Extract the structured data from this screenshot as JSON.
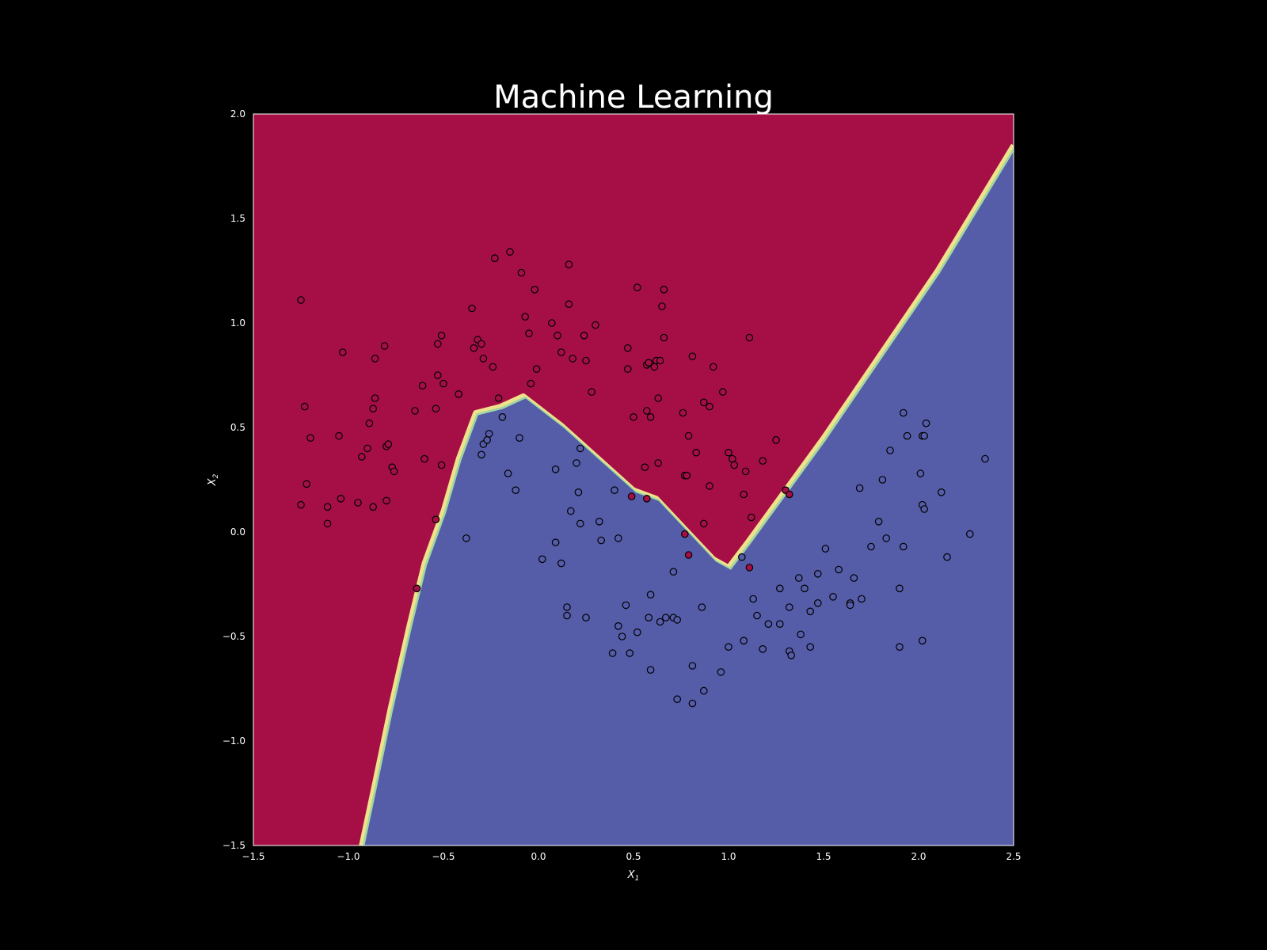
{
  "chart_data": {
    "type": "scatter",
    "title": "Machine Learning",
    "xlabel": "X",
    "xlabel_sub": "1",
    "ylabel": "X",
    "ylabel_sub": "2",
    "xlim": [
      -1.5,
      2.5
    ],
    "ylim": [
      -1.5,
      2.0
    ],
    "x_ticks": [
      -1.5,
      -1.0,
      -0.5,
      0.0,
      0.5,
      1.0,
      1.5,
      2.0,
      2.5
    ],
    "x_tick_labels": [
      "−1.5",
      "−1.0",
      "−0.5",
      "0.0",
      "0.5",
      "1.0",
      "1.5",
      "2.0",
      "2.5"
    ],
    "y_ticks": [
      -1.5,
      -1.0,
      -0.5,
      0.0,
      0.5,
      1.0,
      1.5,
      2.0
    ],
    "y_tick_labels": [
      "−1.5",
      "−1.0",
      "−0.5",
      "0.0",
      "0.5",
      "1.0",
      "1.5",
      "2.0"
    ],
    "grid": false,
    "colors": {
      "background": "#000000",
      "region_class0": "#a50f45",
      "region_class1": "#555ca8",
      "point_class0": "#a50f45",
      "point_class1": "#555ca8",
      "point_edge": "#000000",
      "boundary_bands": [
        "#f0e28a",
        "#9fd6a3",
        "#66c2a5"
      ]
    },
    "decision_boundary": [
      [
        -0.93,
        -1.5
      ],
      [
        -0.86,
        -1.2
      ],
      [
        -0.78,
        -0.85
      ],
      [
        -0.68,
        -0.45
      ],
      [
        -0.6,
        -0.15
      ],
      [
        -0.5,
        0.1
      ],
      [
        -0.42,
        0.35
      ],
      [
        -0.33,
        0.57
      ],
      [
        -0.2,
        0.6
      ],
      [
        -0.08,
        0.65
      ],
      [
        0.12,
        0.51
      ],
      [
        0.5,
        0.2
      ],
      [
        0.62,
        0.16
      ],
      [
        0.92,
        -0.13
      ],
      [
        1.0,
        -0.17
      ],
      [
        1.1,
        -0.05
      ],
      [
        1.3,
        0.2
      ],
      [
        1.5,
        0.45
      ],
      [
        1.8,
        0.85
      ],
      [
        2.1,
        1.25
      ],
      [
        2.5,
        1.85
      ]
    ],
    "series": [
      {
        "class": 0,
        "points": [
          [
            -1.25,
            1.11
          ],
          [
            -1.23,
            0.6
          ],
          [
            -1.2,
            0.45
          ],
          [
            -1.22,
            0.23
          ],
          [
            -1.25,
            0.13
          ],
          [
            -1.11,
            0.12
          ],
          [
            -1.11,
            0.04
          ],
          [
            -1.05,
            0.46
          ],
          [
            -1.03,
            0.86
          ],
          [
            -1.04,
            0.16
          ],
          [
            -0.95,
            0.14
          ],
          [
            -0.93,
            0.36
          ],
          [
            -0.9,
            0.4
          ],
          [
            -0.89,
            0.52
          ],
          [
            -0.87,
            0.59
          ],
          [
            -0.86,
            0.64
          ],
          [
            -0.86,
            0.83
          ],
          [
            -0.87,
            0.12
          ],
          [
            -0.81,
            0.89
          ],
          [
            -0.8,
            0.15
          ],
          [
            -0.8,
            0.41
          ],
          [
            -0.79,
            0.42
          ],
          [
            -0.77,
            0.31
          ],
          [
            -0.76,
            0.29
          ],
          [
            -0.65,
            0.58
          ],
          [
            -0.61,
            0.7
          ],
          [
            -0.6,
            0.35
          ],
          [
            -0.64,
            -0.27
          ],
          [
            -0.54,
            0.59
          ],
          [
            -0.54,
            0.06
          ],
          [
            -0.53,
            0.75
          ],
          [
            -0.53,
            0.9
          ],
          [
            -0.51,
            0.94
          ],
          [
            -0.5,
            0.71
          ],
          [
            -0.51,
            0.32
          ],
          [
            -0.42,
            0.66
          ],
          [
            -0.35,
            1.07
          ],
          [
            -0.34,
            0.88
          ],
          [
            -0.32,
            0.92
          ],
          [
            -0.3,
            0.9
          ],
          [
            -0.29,
            0.83
          ],
          [
            -0.23,
            1.31
          ],
          [
            -0.23,
            1.31
          ],
          [
            -0.24,
            0.79
          ],
          [
            -0.21,
            0.64
          ],
          [
            -0.15,
            1.34
          ],
          [
            -0.09,
            1.24
          ],
          [
            -0.07,
            1.03
          ],
          [
            -0.05,
            0.95
          ],
          [
            -0.04,
            0.71
          ],
          [
            -0.02,
            1.16
          ],
          [
            -0.01,
            0.78
          ],
          [
            0.07,
            1.0
          ],
          [
            0.1,
            0.94
          ],
          [
            0.12,
            0.86
          ],
          [
            0.16,
            1.28
          ],
          [
            0.16,
            1.09
          ],
          [
            0.18,
            0.83
          ],
          [
            0.24,
            0.94
          ],
          [
            0.25,
            0.82
          ],
          [
            0.28,
            0.67
          ],
          [
            0.3,
            0.99
          ],
          [
            0.47,
            0.88
          ],
          [
            0.47,
            0.78
          ],
          [
            0.5,
            0.55
          ],
          [
            0.52,
            1.17
          ],
          [
            0.57,
            0.8
          ],
          [
            0.57,
            0.58
          ],
          [
            0.58,
            0.81
          ],
          [
            0.59,
            0.55
          ],
          [
            0.61,
            0.79
          ],
          [
            0.62,
            0.82
          ],
          [
            0.63,
            0.64
          ],
          [
            0.64,
            0.82
          ],
          [
            0.65,
            1.08
          ],
          [
            0.66,
            1.16
          ],
          [
            0.66,
            0.93
          ],
          [
            0.56,
            0.31
          ],
          [
            0.63,
            0.33
          ],
          [
            0.76,
            0.57
          ],
          [
            0.77,
            0.27
          ],
          [
            0.78,
            0.27
          ],
          [
            0.79,
            0.46
          ],
          [
            0.81,
            0.84
          ],
          [
            0.83,
            0.38
          ],
          [
            0.87,
            0.62
          ],
          [
            0.87,
            0.04
          ],
          [
            0.9,
            0.6
          ],
          [
            0.9,
            0.22
          ],
          [
            0.92,
            0.79
          ],
          [
            0.97,
            0.67
          ],
          [
            1.0,
            0.38
          ],
          [
            1.02,
            0.35
          ],
          [
            1.03,
            0.32
          ],
          [
            1.08,
            0.18
          ],
          [
            1.09,
            0.29
          ],
          [
            1.11,
            0.93
          ],
          [
            1.12,
            0.07
          ],
          [
            1.18,
            0.34
          ],
          [
            1.25,
            0.44
          ],
          [
            1.3,
            0.2
          ],
          [
            0.49,
            0.17
          ],
          [
            0.57,
            0.16
          ],
          [
            0.77,
            -0.01
          ],
          [
            0.79,
            -0.11
          ],
          [
            1.11,
            -0.17
          ],
          [
            1.32,
            0.18
          ]
        ]
      },
      {
        "class": 1,
        "points": [
          [
            -0.38,
            -0.03
          ],
          [
            -0.3,
            0.37
          ],
          [
            -0.29,
            0.42
          ],
          [
            -0.27,
            0.44
          ],
          [
            -0.26,
            0.47
          ],
          [
            -0.19,
            0.55
          ],
          [
            -0.16,
            0.28
          ],
          [
            -0.12,
            0.2
          ],
          [
            -0.1,
            0.45
          ],
          [
            0.02,
            -0.13
          ],
          [
            0.09,
            -0.05
          ],
          [
            0.09,
            0.3
          ],
          [
            0.12,
            -0.15
          ],
          [
            0.15,
            -0.36
          ],
          [
            0.15,
            -0.4
          ],
          [
            0.17,
            0.1
          ],
          [
            0.2,
            0.33
          ],
          [
            0.21,
            0.19
          ],
          [
            0.22,
            0.04
          ],
          [
            0.22,
            0.4
          ],
          [
            0.25,
            -0.41
          ],
          [
            0.32,
            0.05
          ],
          [
            0.33,
            -0.04
          ],
          [
            0.39,
            -0.58
          ],
          [
            0.4,
            0.2
          ],
          [
            0.42,
            -0.45
          ],
          [
            0.42,
            -0.03
          ],
          [
            0.44,
            -0.5
          ],
          [
            0.46,
            -0.35
          ],
          [
            0.48,
            -0.58
          ],
          [
            0.52,
            -0.48
          ],
          [
            0.58,
            -0.41
          ],
          [
            0.59,
            -0.3
          ],
          [
            0.59,
            -0.66
          ],
          [
            0.64,
            -0.43
          ],
          [
            0.67,
            -0.41
          ],
          [
            0.71,
            -0.41
          ],
          [
            0.71,
            -0.19
          ],
          [
            0.73,
            -0.42
          ],
          [
            0.73,
            -0.8
          ],
          [
            0.81,
            -0.64
          ],
          [
            0.81,
            -0.82
          ],
          [
            0.86,
            -0.36
          ],
          [
            0.87,
            -0.76
          ],
          [
            0.96,
            -0.67
          ],
          [
            1.0,
            -0.55
          ],
          [
            1.07,
            -0.12
          ],
          [
            1.08,
            -0.52
          ],
          [
            1.13,
            -0.32
          ],
          [
            1.15,
            -0.4
          ],
          [
            1.18,
            -0.56
          ],
          [
            1.21,
            -0.44
          ],
          [
            1.27,
            -0.27
          ],
          [
            1.27,
            -0.44
          ],
          [
            1.32,
            -0.36
          ],
          [
            1.32,
            -0.57
          ],
          [
            1.33,
            -0.59
          ],
          [
            1.37,
            -0.22
          ],
          [
            1.38,
            -0.49
          ],
          [
            1.4,
            -0.27
          ],
          [
            1.43,
            -0.38
          ],
          [
            1.43,
            -0.55
          ],
          [
            1.47,
            -0.34
          ],
          [
            1.47,
            -0.2
          ],
          [
            1.51,
            -0.08
          ],
          [
            1.55,
            -0.31
          ],
          [
            1.58,
            -0.18
          ],
          [
            1.64,
            -0.34
          ],
          [
            1.64,
            -0.35
          ],
          [
            1.66,
            -0.22
          ],
          [
            1.69,
            0.21
          ],
          [
            1.7,
            -0.32
          ],
          [
            1.75,
            -0.07
          ],
          [
            1.79,
            0.05
          ],
          [
            1.81,
            0.25
          ],
          [
            1.83,
            -0.03
          ],
          [
            1.85,
            0.39
          ],
          [
            1.9,
            -0.27
          ],
          [
            1.9,
            -0.55
          ],
          [
            1.92,
            0.57
          ],
          [
            1.92,
            -0.07
          ],
          [
            1.94,
            0.46
          ],
          [
            2.01,
            0.28
          ],
          [
            2.02,
            0.13
          ],
          [
            2.02,
            0.46
          ],
          [
            2.02,
            -0.52
          ],
          [
            2.03,
            0.11
          ],
          [
            2.03,
            0.46
          ],
          [
            2.04,
            0.52
          ],
          [
            2.12,
            0.19
          ],
          [
            2.15,
            -0.12
          ],
          [
            2.27,
            -0.01
          ],
          [
            2.35,
            0.35
          ]
        ]
      }
    ]
  }
}
